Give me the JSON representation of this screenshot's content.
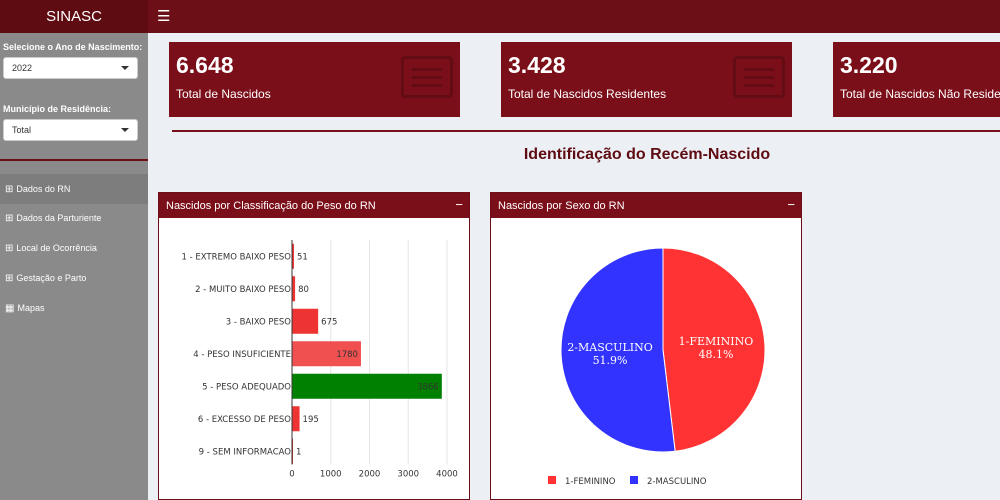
{
  "app": {
    "title": "SINASC"
  },
  "sidebar": {
    "year_label": "Selecione o Ano de Nascimento:",
    "year_value": "2022",
    "municipio_label": "Município de Residência:",
    "municipio_value": "Total",
    "menu": [
      {
        "label": "Dados do RN",
        "icon": "table-icon"
      },
      {
        "label": "Dados da Parturiente",
        "icon": "table-icon"
      },
      {
        "label": "Local de Ocorrência",
        "icon": "table-icon"
      },
      {
        "label": "Gestação e Parto",
        "icon": "table-icon"
      },
      {
        "label": "Mapas",
        "icon": "map-icon"
      }
    ]
  },
  "infoboxes": [
    {
      "value": "6.648",
      "label": "Total de Nascidos"
    },
    {
      "value": "3.428",
      "label": "Total de Nascidos Residentes"
    },
    {
      "value": "3.220",
      "label": "Total de Nascidos Não Residentes"
    }
  ],
  "section_title": "Identificação do Recém-Nascido",
  "panels": {
    "peso": {
      "title": "Nascidos por Classificação do Peso do RN",
      "collapse": "−"
    },
    "sexo": {
      "title": "Nascidos por Sexo do RN",
      "collapse": "−"
    }
  },
  "chart_data": [
    {
      "type": "bar",
      "orientation": "horizontal",
      "categories": [
        "1 - EXTREMO BAIXO PESO",
        "2 - MUITO BAIXO PESO",
        "3 - BAIXO PESO",
        "4 - PESO INSUFICIENTE",
        "5 - PESO ADEQUADO",
        "6 - EXCESSO DE PESO",
        "9 - SEM INFORMACAO"
      ],
      "values": [
        51,
        80,
        675,
        1780,
        3866,
        195,
        1
      ],
      "colors": [
        "#ee3333",
        "#ee3333",
        "#ee3333",
        "#f05050",
        "#008000",
        "#ee3333",
        "#ee3333"
      ],
      "xlim": [
        0,
        4000
      ],
      "xticks": [
        0,
        1000,
        2000,
        3000,
        4000
      ],
      "grid": true
    },
    {
      "type": "pie",
      "labels": [
        "1-FEMININO",
        "2-MASCULINO"
      ],
      "values": [
        48.1,
        51.9
      ],
      "value_labels": [
        "48.1%",
        "51.9%"
      ],
      "colors": [
        "#ff3333",
        "#3333ff"
      ],
      "legend": "bottom"
    }
  ]
}
